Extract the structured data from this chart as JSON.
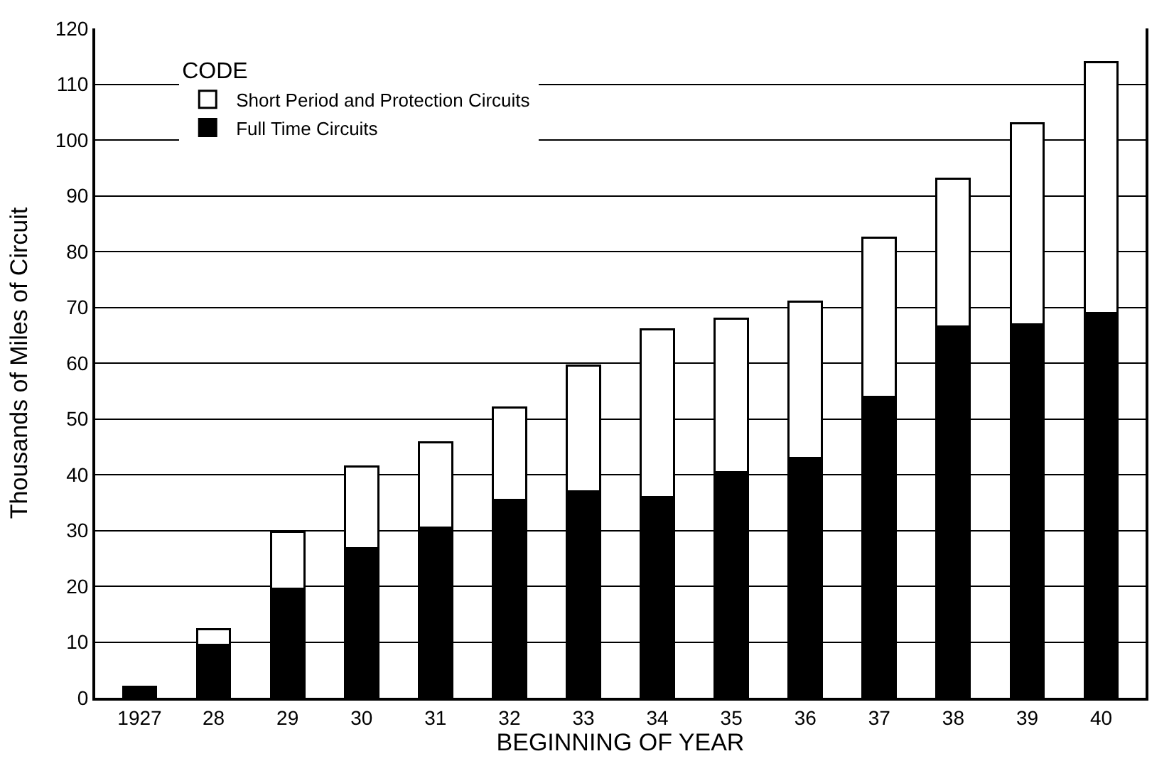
{
  "chart_data": {
    "type": "bar",
    "stacked": true,
    "xlabel": "BEGINNING OF YEAR",
    "ylabel": "Thousands of Miles of Circuit",
    "legend_title": "CODE",
    "categories": [
      "1927",
      "28",
      "29",
      "30",
      "31",
      "32",
      "33",
      "34",
      "35",
      "36",
      "37",
      "38",
      "39",
      "40"
    ],
    "series": [
      {
        "name": "Full Time Circuits",
        "color": "#000000",
        "values": [
          2,
          9.5,
          19.5,
          26.8,
          30.5,
          35.5,
          37,
          36,
          40.5,
          43,
          54,
          66.5,
          67,
          69
        ]
      },
      {
        "name": "Short Period and Protection Circuits",
        "color": "#ffffff",
        "values": [
          null,
          2.8,
          10.2,
          14.7,
          15.3,
          16.5,
          22.5,
          30,
          27.5,
          28,
          28.5,
          26.5,
          36,
          45
        ]
      }
    ],
    "ylim": [
      0,
      120
    ],
    "yticks": [
      0,
      10,
      20,
      30,
      40,
      50,
      60,
      70,
      80,
      90,
      100,
      110,
      120
    ],
    "grid": "y",
    "legend": "top left"
  }
}
